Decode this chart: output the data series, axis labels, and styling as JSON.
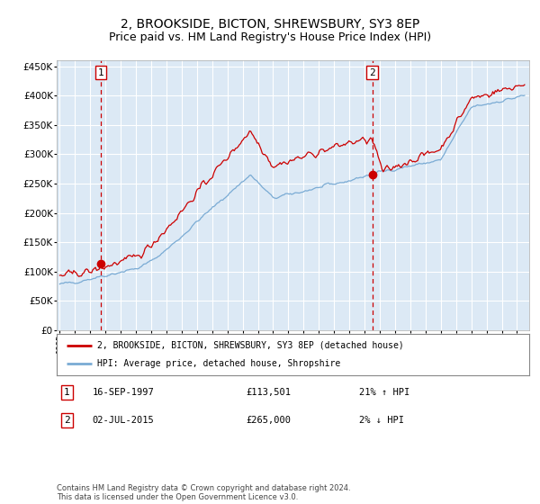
{
  "title": "2, BROOKSIDE, BICTON, SHREWSBURY, SY3 8EP",
  "subtitle": "Price paid vs. HM Land Registry's House Price Index (HPI)",
  "title_fontsize": 10,
  "subtitle_fontsize": 9,
  "bg_color": "#dce9f5",
  "grid_color": "#ffffff",
  "red_line_color": "#cc0000",
  "blue_line_color": "#7aabd4",
  "sale1_date_num": 1997.71,
  "sale1_price": 113501,
  "sale1_label": "1",
  "sale2_date_num": 2015.5,
  "sale2_price": 265000,
  "sale2_label": "2",
  "ylim_min": 0,
  "ylim_max": 460000,
  "xlim_min": 1994.8,
  "xlim_max": 2025.8,
  "legend_red": "2, BROOKSIDE, BICTON, SHREWSBURY, SY3 8EP (detached house)",
  "legend_blue": "HPI: Average price, detached house, Shropshire",
  "footnote": "Contains HM Land Registry data © Crown copyright and database right 2024.\nThis data is licensed under the Open Government Licence v3.0.",
  "yticks": [
    0,
    50000,
    100000,
    150000,
    200000,
    250000,
    300000,
    350000,
    400000,
    450000
  ],
  "ytick_labels": [
    "£0",
    "£50K",
    "£100K",
    "£150K",
    "£200K",
    "£250K",
    "£300K",
    "£350K",
    "£400K",
    "£450K"
  ],
  "row1_num": "1",
  "row1_date": "16-SEP-1997",
  "row1_price": "£113,501",
  "row1_hpi": "21% ↑ HPI",
  "row2_num": "2",
  "row2_date": "02-JUL-2015",
  "row2_price": "£265,000",
  "row2_hpi": "2% ↓ HPI"
}
